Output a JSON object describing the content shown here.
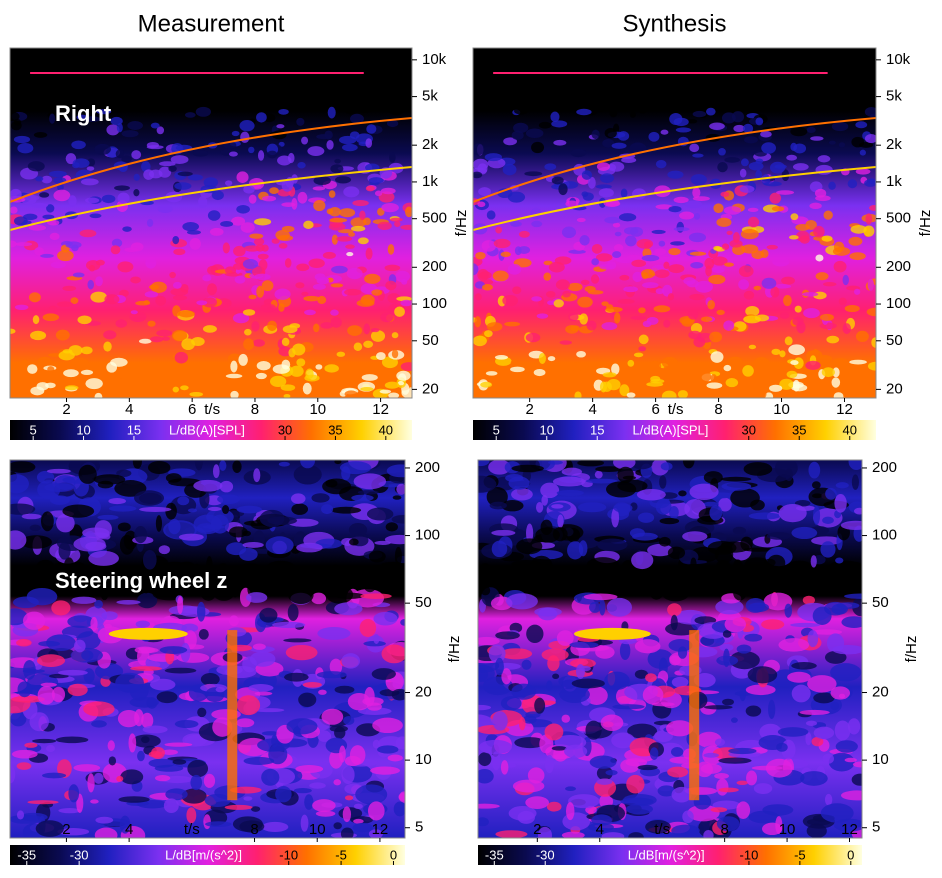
{
  "chart_data": [
    {
      "type": "heatmap",
      "title": "Measurement",
      "annotation": "Right",
      "xlabel": "t/s",
      "xlim": [
        0.2,
        13.0
      ],
      "xticks": [
        2,
        4,
        6,
        8,
        10,
        12
      ],
      "ylabel": "f/Hz",
      "yscale": "log",
      "ylim": [
        17,
        12500
      ],
      "yticks": [
        20,
        50,
        100,
        200,
        500,
        {
          "value": 1000,
          "label": "1k"
        },
        {
          "value": 2000,
          "label": "2k"
        },
        {
          "value": 5000,
          "label": "5k"
        },
        {
          "value": 10000,
          "label": "10k"
        }
      ],
      "colorbar": {
        "label": "L/dB(A)[SPL]",
        "lim": [
          2.7,
          42.6
        ],
        "ticks": [
          5,
          10,
          15,
          30,
          35,
          40
        ]
      },
      "colormap": [
        "#000000",
        "#0a0a50",
        "#2020c0",
        "#7a30f0",
        "#e020e0",
        "#ff2070",
        "#ff7000",
        "#ffd000",
        "#ffffe0"
      ]
    },
    {
      "type": "heatmap",
      "title": "Synthesis",
      "xlabel": "t/s",
      "xlim": [
        0.2,
        13.0
      ],
      "xticks": [
        2,
        4,
        6,
        8,
        10,
        12
      ],
      "ylabel": "f/Hz",
      "yscale": "log",
      "ylim": [
        17,
        12500
      ],
      "yticks": [
        20,
        50,
        100,
        200,
        500,
        {
          "value": 1000,
          "label": "1k"
        },
        {
          "value": 2000,
          "label": "2k"
        },
        {
          "value": 5000,
          "label": "5k"
        },
        {
          "value": 10000,
          "label": "10k"
        }
      ],
      "colorbar": {
        "label": "L/dB(A)[SPL]",
        "lim": [
          2.7,
          42.6
        ],
        "ticks": [
          5,
          10,
          15,
          30,
          35,
          40
        ]
      },
      "colormap": [
        "#000000",
        "#0a0a50",
        "#2020c0",
        "#7a30f0",
        "#e020e0",
        "#ff2070",
        "#ff7000",
        "#ffd000",
        "#ffffe0"
      ]
    },
    {
      "type": "heatmap",
      "annotation": "Steering wheel z",
      "xlabel": "t/s",
      "xlim": [
        0.2,
        12.8
      ],
      "xticks": [
        2,
        4,
        8,
        10,
        12
      ],
      "ylabel": "f/Hz",
      "yscale": "log",
      "ylim": [
        4.5,
        217
      ],
      "yticks": [
        5,
        10,
        20,
        50,
        100,
        200
      ],
      "colorbar": {
        "label": "L/dB[m/(s^2)]",
        "lim": [
          -36.6,
          1.1
        ],
        "ticks": [
          -35,
          -30,
          -10,
          -5,
          0
        ]
      },
      "colormap": [
        "#000000",
        "#0a0a50",
        "#2020c0",
        "#7a30f0",
        "#e020e0",
        "#ff2070",
        "#ff7000",
        "#ffd000",
        "#ffffe0"
      ]
    },
    {
      "type": "heatmap",
      "xlabel": "t/s",
      "xlim": [
        0.1,
        12.4
      ],
      "xticks": [
        2,
        4,
        8,
        10,
        12
      ],
      "ylabel": "f/Hz",
      "yscale": "log",
      "ylim": [
        4.5,
        217
      ],
      "yticks": [
        5,
        10,
        20,
        50,
        100,
        200
      ],
      "colorbar": {
        "label": "L/dB[m/(s^2)]",
        "lim": [
          -36.6,
          1.1
        ],
        "ticks": [
          -35,
          -30,
          -10,
          -5,
          0
        ]
      },
      "colormap": [
        "#000000",
        "#0a0a50",
        "#2020c0",
        "#7a30f0",
        "#e020e0",
        "#ff2070",
        "#ff7000",
        "#ffd000",
        "#ffffe0"
      ]
    }
  ]
}
